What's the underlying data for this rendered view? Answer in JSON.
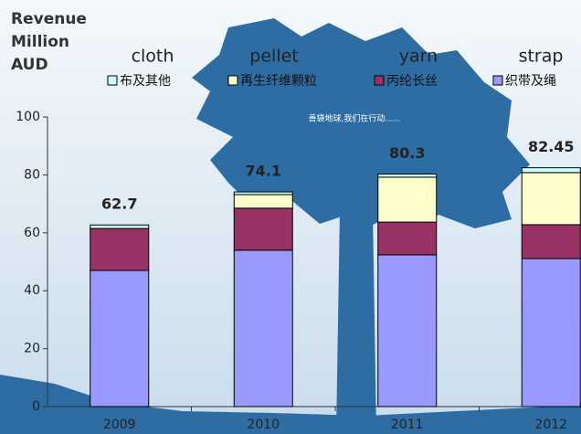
{
  "chart_data": {
    "type": "stacked_bar",
    "title_lines": [
      "Revenue",
      "Million",
      "AUD"
    ],
    "annotation": "善袋地球,我们在行动......",
    "categories": [
      "2009",
      "2010",
      "2011",
      "2012"
    ],
    "series": [
      {
        "name": "strap",
        "legend_label": "织带及绳",
        "color": "#9999ff",
        "values": [
          47,
          54,
          52.4,
          51.1
        ]
      },
      {
        "name": "yarn",
        "legend_label": "丙纶长丝",
        "color": "#993366",
        "values": [
          14.5,
          14.5,
          11.3,
          11.7
        ]
      },
      {
        "name": "pellet",
        "legend_label": "再生纤维颗粒",
        "color": "#ffffcc",
        "values": [
          0,
          4.7,
          15.5,
          18
        ]
      },
      {
        "name": "cloth",
        "legend_label": "布及其他",
        "color": "#ccffff",
        "values": [
          1.2,
          0.9,
          1.1,
          1.65
        ]
      }
    ],
    "totals": [
      62.7,
      74.1,
      80.3,
      82.45
    ],
    "ylim": [
      0,
      100
    ],
    "yticks": [
      0,
      20,
      40,
      60,
      80,
      100
    ],
    "grid": false
  }
}
